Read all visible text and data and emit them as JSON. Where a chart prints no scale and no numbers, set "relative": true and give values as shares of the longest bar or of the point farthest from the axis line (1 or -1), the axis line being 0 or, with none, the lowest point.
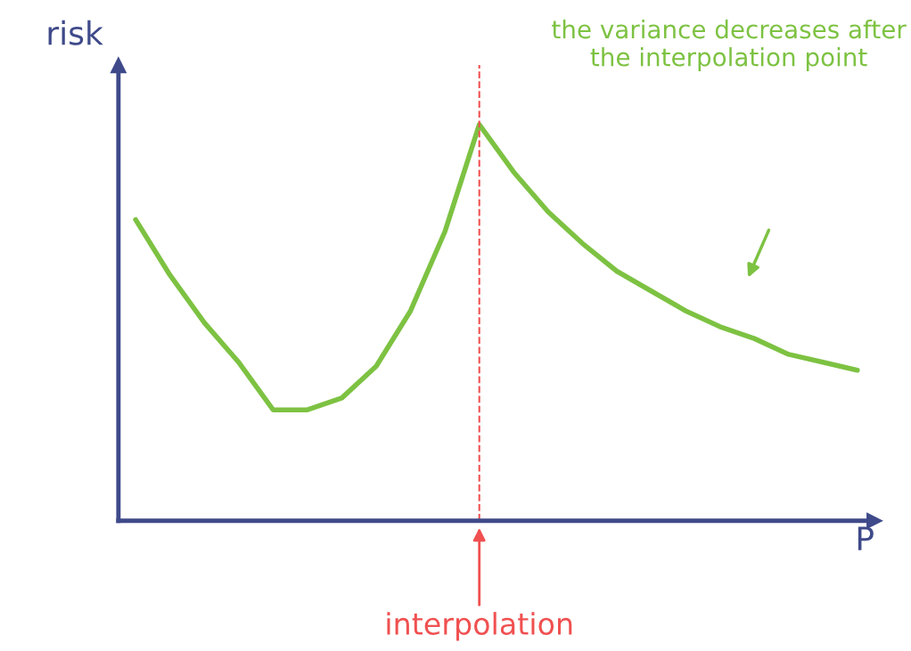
{
  "chart_data": {
    "type": "line",
    "relative": true,
    "xlabel": "P",
    "ylabel": "risk",
    "categories": [
      null,
      null,
      null,
      null,
      null,
      null,
      null,
      null,
      null,
      null,
      null,
      null,
      null,
      null,
      null,
      null,
      null,
      null,
      null,
      null,
      null,
      null
    ],
    "series": [
      {
        "color": "#7dc242",
        "values": [
          0.76,
          0.62,
          0.5,
          0.4,
          0.28,
          0.28,
          0.31,
          0.39,
          0.53,
          0.73,
          1.0,
          0.88,
          0.78,
          0.7,
          0.63,
          0.58,
          0.53,
          0.49,
          0.46,
          0.42,
          0.4,
          0.38
        ]
      }
    ],
    "annotations": [
      "interpolation",
      "the variance decreases after the interpolation point"
    ],
    "tick_labels": false
  }
}
